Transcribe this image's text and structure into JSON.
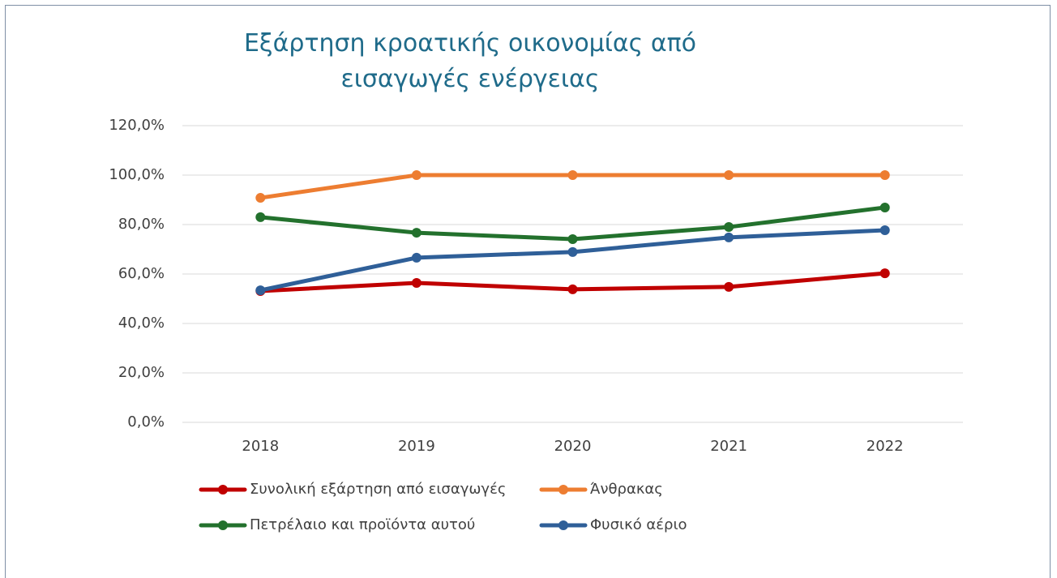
{
  "chart_data": {
    "type": "line",
    "title": "Εξάρτηση κροατικής οικονομίας από εισαγωγές ενέργειας",
    "categories": [
      "2018",
      "2019",
      "2020",
      "2021",
      "2022"
    ],
    "series": [
      {
        "name": "Συνολική εξάρτηση από εισαγωγές",
        "color": "#c00000",
        "values": [
          53.1,
          56.4,
          53.8,
          54.8,
          60.3
        ]
      },
      {
        "name": "Άνθρακας",
        "color": "#ed7d31",
        "values": [
          90.8,
          100,
          100,
          100,
          100
        ]
      },
      {
        "name": "Πετρέλαιο και προϊόντα αυτού",
        "color": "#23712d",
        "values": [
          83.0,
          76.7,
          74.1,
          79.0,
          86.9
        ]
      },
      {
        "name": "Φυσικό αέριο",
        "color": "#2f5f98",
        "values": [
          53.4,
          66.6,
          68.9,
          74.8,
          77.7
        ]
      }
    ],
    "ylim": [
      0,
      120
    ],
    "yticks": [
      {
        "value": 0,
        "label": "0,0%"
      },
      {
        "value": 20,
        "label": "20,0%"
      },
      {
        "value": 40,
        "label": "40,0%"
      },
      {
        "value": 60,
        "label": "60,0%"
      },
      {
        "value": 80,
        "label": "80,0%"
      },
      {
        "value": 100,
        "label": "100,0%"
      },
      {
        "value": 120,
        "label": "120,0%"
      }
    ],
    "grid": true
  }
}
